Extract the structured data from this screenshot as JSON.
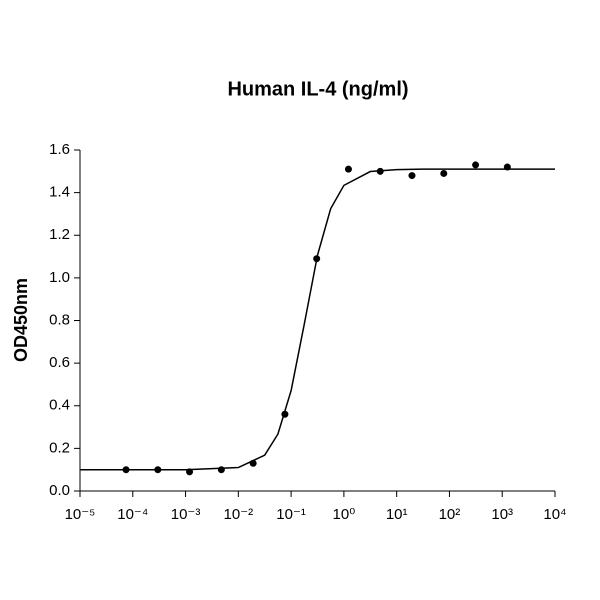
{
  "chart_data": {
    "type": "scatter",
    "title": "Human IL-4 (ng/ml)",
    "y_label": "OD450nm",
    "x_scale": "log",
    "color": "#000000",
    "xlim": [
      1e-05,
      10000
    ],
    "xticks": [
      {
        "value": 1e-05,
        "label": "10⁻⁵"
      },
      {
        "value": 0.0001,
        "label": "10⁻⁴"
      },
      {
        "value": 0.001,
        "label": "10⁻³"
      },
      {
        "value": 0.01,
        "label": "10⁻²"
      },
      {
        "value": 0.1,
        "label": "10⁻¹"
      },
      {
        "value": 1,
        "label": "10⁰"
      },
      {
        "value": 10,
        "label": "10¹"
      },
      {
        "value": 100,
        "label": "10²"
      },
      {
        "value": 1000,
        "label": "10³"
      },
      {
        "value": 10000,
        "label": "10⁴"
      }
    ],
    "ylim": [
      0,
      1.6
    ],
    "yticks": [
      {
        "value": 0,
        "label": "0.0"
      },
      0.2,
      0.4,
      0.6,
      0.8,
      {
        "value": 1,
        "label": "1.0"
      },
      1.2,
      1.4,
      1.6
    ],
    "points": {
      "x": [
        7.45e-05,
        0.000298,
        0.00119,
        0.00477,
        0.0191,
        0.0763,
        0.305,
        1.22,
        4.88,
        19.5,
        78.1,
        312.5,
        1250
      ],
      "values": [
        0.1,
        0.1,
        0.09,
        0.1,
        0.13,
        0.36,
        1.09,
        1.51,
        1.5,
        1.48,
        1.49,
        1.53,
        1.52
      ]
    },
    "curve": {
      "x": [
        1e-05,
        0.0001,
        0.001,
        0.01,
        0.0316,
        0.0562,
        0.1,
        0.178,
        0.316,
        0.562,
        1,
        3.16,
        10,
        31.6,
        100,
        10000
      ],
      "values": [
        0.1,
        0.1,
        0.1,
        0.11,
        0.168,
        0.267,
        0.471,
        0.784,
        1.106,
        1.325,
        1.434,
        1.499,
        1.508,
        1.51,
        1.51,
        1.51
      ]
    }
  }
}
